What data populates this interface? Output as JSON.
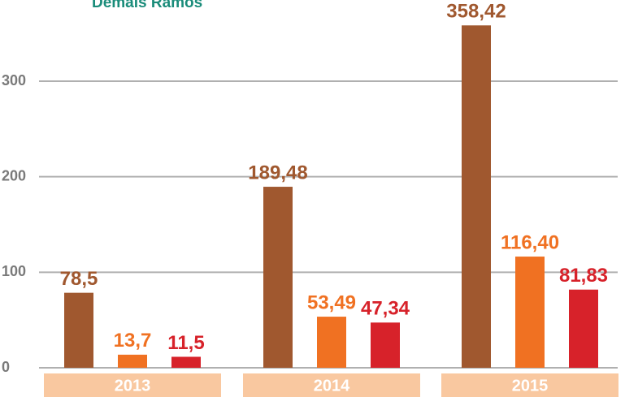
{
  "chart_data": {
    "type": "bar",
    "legend_text": "Demais Ramos",
    "categories": [
      "2013",
      "2014",
      "2015"
    ],
    "series": [
      {
        "color": "#a0582f",
        "values": [
          78.5,
          189.48,
          358.42
        ],
        "value_labels": [
          "78,5",
          "189,48",
          "358,42"
        ]
      },
      {
        "color": "#f07122",
        "values": [
          13.7,
          53.49,
          116.4
        ],
        "value_labels": [
          "13,7",
          "53,49",
          "116,40"
        ]
      },
      {
        "color": "#d7222a",
        "values": [
          11.5,
          47.34,
          81.83
        ],
        "value_labels": [
          "11,5",
          "47,34",
          "81,83"
        ]
      }
    ],
    "ylim": [
      0,
      385
    ],
    "yticks": [
      0,
      100,
      200,
      300
    ],
    "grid": true
  }
}
